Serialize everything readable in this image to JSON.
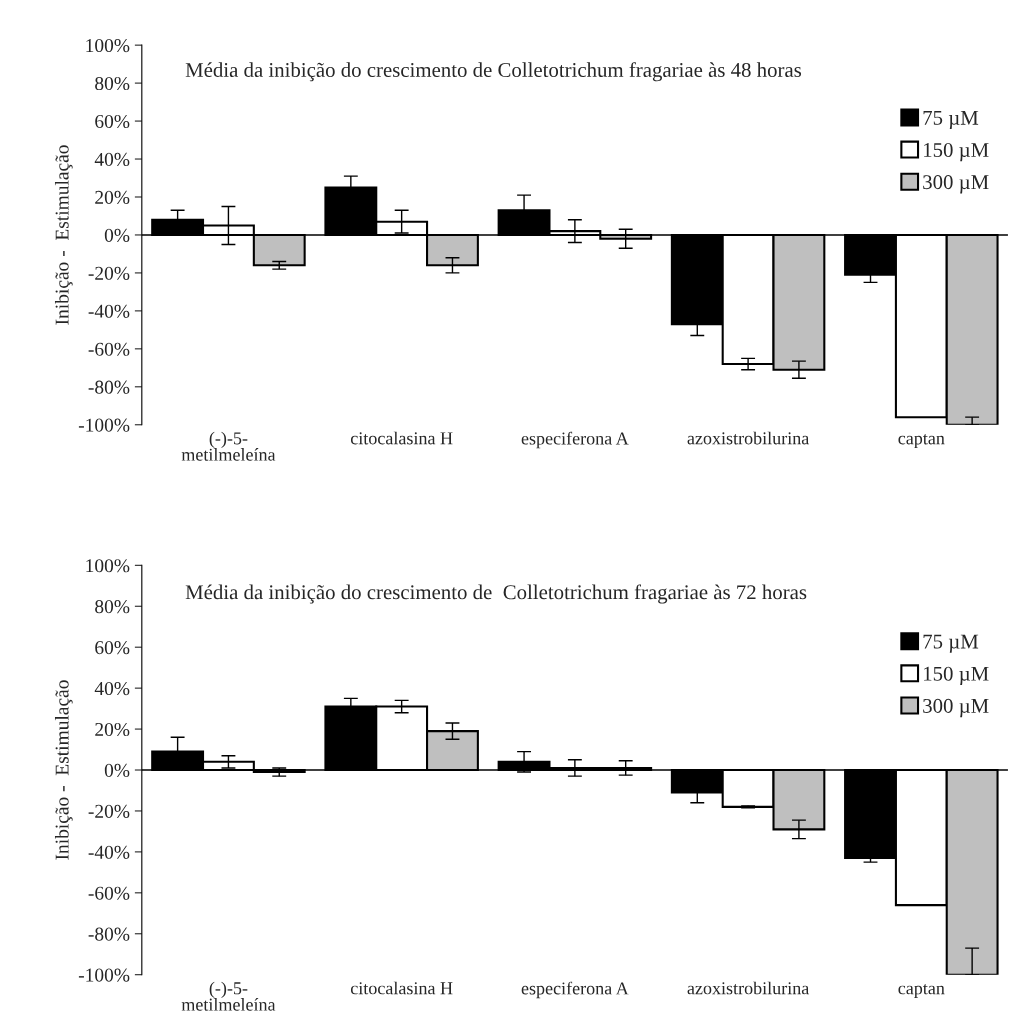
{
  "chart_data": [
    {
      "type": "bar",
      "title": "Média da inibição do crescimento de Colletotrichum fragariae às 48 horas",
      "ylabel": "Inibição -  Estimulação",
      "categories": [
        "(-)-5-\nmetilmeleína",
        "citocalasina H",
        "especiferona A",
        "azoxistrobilurina",
        "captan"
      ],
      "series": [
        {
          "name": "75 µM",
          "color": "#000000",
          "values": [
            8,
            25,
            13,
            -47,
            -21
          ],
          "errors": [
            5,
            6,
            8,
            6,
            4
          ]
        },
        {
          "name": "150 µM",
          "color": "#ffffff",
          "values": [
            5,
            7,
            2,
            -68,
            -96
          ],
          "errors": [
            10,
            6,
            6,
            3,
            null
          ]
        },
        {
          "name": "300 µM",
          "color": "#bfbfbf",
          "values": [
            -16,
            -16,
            -2,
            -71,
            -100
          ],
          "errors": [
            2,
            4,
            5,
            4.5,
            [
              -100,
              -96
            ]
          ]
        }
      ],
      "ylim": [
        -100,
        100
      ],
      "yticks": [
        {
          "value": -100,
          "label": "-100%"
        },
        {
          "value": -80,
          "label": "-80%"
        },
        {
          "value": -60,
          "label": "-60%"
        },
        {
          "value": -40,
          "label": "-40%"
        },
        {
          "value": -20,
          "label": "-20%"
        },
        {
          "value": 0,
          "label": "0%"
        },
        {
          "value": 20,
          "label": "20%"
        },
        {
          "value": 40,
          "label": "40%"
        },
        {
          "value": 60,
          "label": "60%"
        },
        {
          "value": 80,
          "label": "80%"
        },
        {
          "value": 100,
          "label": "100%"
        }
      ],
      "legend": "top right"
    },
    {
      "type": "bar",
      "title": "Média da inibição do crescimento de  Colletotrichum fragariae às 72 horas",
      "ylabel": "Inibição -  Estimulação",
      "categories": [
        "(-)-5-\nmetilmeleína",
        "citocalasina H",
        "especiferona A",
        "azoxistrobilurina",
        "captan"
      ],
      "series": [
        {
          "name": "75 µM",
          "color": "#000000",
          "values": [
            9,
            31,
            4,
            -11,
            -43
          ],
          "errors": [
            7,
            4,
            5,
            5,
            2
          ]
        },
        {
          "name": "150 µM",
          "color": "#ffffff",
          "values": [
            4,
            31,
            1,
            -18,
            -66
          ],
          "errors": [
            3,
            3,
            4,
            0.5,
            null
          ]
        },
        {
          "name": "300 µM",
          "color": "#bfbfbf",
          "values": [
            -1,
            19,
            1,
            -29,
            -100
          ],
          "errors": [
            2,
            4,
            3.5,
            4.5,
            [
              -100,
              -87
            ]
          ]
        }
      ],
      "ylim": [
        -100,
        100
      ],
      "yticks": [
        {
          "value": -100,
          "label": "-100%"
        },
        {
          "value": -80,
          "label": "-80%"
        },
        {
          "value": -60,
          "label": "-60%"
        },
        {
          "value": -40,
          "label": "-40%"
        },
        {
          "value": -20,
          "label": "-20%"
        },
        {
          "value": 0,
          "label": "0%"
        },
        {
          "value": 20,
          "label": "20%"
        },
        {
          "value": 40,
          "label": "40%"
        },
        {
          "value": 60,
          "label": "60%"
        },
        {
          "value": 80,
          "label": "80%"
        },
        {
          "value": 100,
          "label": "100%"
        }
      ],
      "legend": "top right"
    }
  ]
}
